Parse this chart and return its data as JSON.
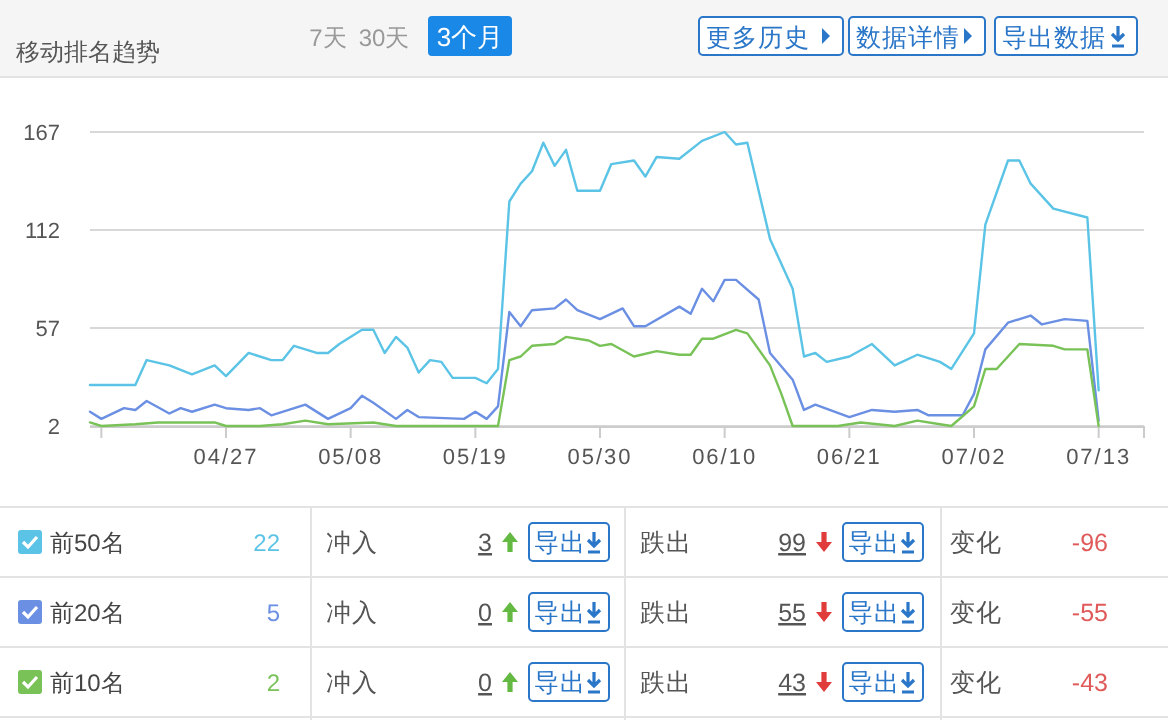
{
  "chart_data": [
    {
      "type": "line",
      "title": "移动排名趋势",
      "xlim": [
        "--04-15",
        "--07-17"
      ],
      "ylim": [
        2,
        167
      ],
      "yticks": [
        2,
        57,
        112,
        167
      ],
      "xticks": [
        {
          "value": "--04-16",
          "label": null
        },
        {
          "value": "--04-27",
          "label": "04/27"
        },
        {
          "value": "--05-08",
          "label": "05/08"
        },
        {
          "value": "--05-19",
          "label": "05/19"
        },
        {
          "value": "--05-30",
          "label": "05/30"
        },
        {
          "value": "--06-10",
          "label": "06/10"
        },
        {
          "value": "--06-21",
          "label": "06/21"
        },
        {
          "value": "--07-02",
          "label": "07/02"
        },
        {
          "value": "--07-13",
          "label": "07/13"
        }
      ],
      "grid": "y",
      "legend": "bottom",
      "series": [
        {
          "name": "前50名",
          "color": "#5bc4e6",
          "x": [
            "--04-15",
            "--04-19",
            "--04-20",
            "--04-22",
            "--04-24",
            "--04-26",
            "--04-27",
            "--04-29",
            "--05-01",
            "--05-02",
            "--05-03",
            "--05-05",
            "--05-06",
            "--05-07",
            "--05-09",
            "--05-10",
            "--05-11",
            "--05-12",
            "--05-13",
            "--05-14",
            "--05-15",
            "--05-16",
            "--05-17",
            "--05-19",
            "--05-20",
            "--05-21",
            "--05-22",
            "--05-23",
            "--05-24",
            "--05-25",
            "--05-26",
            "--05-27",
            "--05-28",
            "--05-30",
            "--05-31",
            "--06-02",
            "--06-03",
            "--06-04",
            "--06-06",
            "--06-08",
            "--06-10",
            "--06-11",
            "--06-12",
            "--06-14",
            "--06-16",
            "--06-17",
            "--06-18",
            "--06-19",
            "--06-21",
            "--06-23",
            "--06-25",
            "--06-27",
            "--06-29",
            "--06-30",
            "--07-02",
            "--07-03",
            "--07-05",
            "--07-06",
            "--07-07",
            "--07-09",
            "--07-12",
            "--07-13"
          ],
          "values": [
            25,
            25,
            39,
            36,
            31,
            36,
            30,
            43,
            39,
            39,
            47,
            43,
            43,
            48,
            56,
            56,
            43,
            52,
            46,
            32,
            39,
            38,
            29,
            29,
            26,
            34,
            128,
            138,
            145,
            161,
            148,
            157,
            134,
            134,
            149,
            151,
            142,
            153,
            152,
            162,
            167,
            160,
            161,
            107,
            79,
            41,
            43,
            38,
            41,
            48,
            36,
            42,
            38,
            34,
            54,
            115,
            151,
            151,
            138,
            124,
            119,
            22
          ]
        },
        {
          "name": "前20名",
          "color": "#6b8fe3",
          "x": [
            "--04-15",
            "--04-16",
            "--04-18",
            "--04-19",
            "--04-20",
            "--04-22",
            "--04-23",
            "--04-24",
            "--04-26",
            "--04-27",
            "--04-29",
            "--04-30",
            "--05-01",
            "--05-04",
            "--05-06",
            "--05-08",
            "--05-09",
            "--05-10",
            "--05-12",
            "--05-13",
            "--05-14",
            "--05-18",
            "--05-19",
            "--05-20",
            "--05-21",
            "--05-22",
            "--05-23",
            "--05-24",
            "--05-26",
            "--05-27",
            "--05-28",
            "--05-30",
            "--06-01",
            "--06-02",
            "--06-03",
            "--06-06",
            "--06-07",
            "--06-08",
            "--06-09",
            "--06-10",
            "--06-11",
            "--06-13",
            "--06-14",
            "--06-16",
            "--06-17",
            "--06-18",
            "--06-21",
            "--06-23",
            "--06-25",
            "--06-27",
            "--06-28",
            "--07-01",
            "--07-02",
            "--07-03",
            "--07-05",
            "--07-07",
            "--07-08",
            "--07-10",
            "--07-12",
            "--07-13"
          ],
          "values": [
            10,
            6,
            12,
            11,
            16,
            9,
            12,
            10,
            14,
            12,
            11,
            12,
            8,
            14,
            6,
            12,
            19,
            15,
            6,
            11,
            7,
            6,
            10,
            6,
            13,
            66,
            58,
            67,
            68,
            73,
            67,
            62,
            68,
            58,
            58,
            69,
            65,
            79,
            72,
            84,
            84,
            73,
            43,
            28,
            11,
            14,
            7,
            11,
            10,
            11,
            8,
            8,
            20,
            45,
            60,
            64,
            59,
            62,
            61,
            5
          ]
        },
        {
          "name": "前10名",
          "color": "#78c257",
          "x": [
            "--04-15",
            "--04-16",
            "--04-19",
            "--04-21",
            "--04-23",
            "--04-26",
            "--04-27",
            "--04-30",
            "--05-02",
            "--05-04",
            "--05-06",
            "--05-10",
            "--05-12",
            "--05-21",
            "--05-22",
            "--05-23",
            "--05-24",
            "--05-26",
            "--05-27",
            "--05-29",
            "--05-30",
            "--05-31",
            "--06-02",
            "--06-04",
            "--06-06",
            "--06-07",
            "--06-08",
            "--06-09",
            "--06-11",
            "--06-12",
            "--06-14",
            "--06-15",
            "--06-16",
            "--06-20",
            "--06-22",
            "--06-25",
            "--06-27",
            "--06-29",
            "--06-30",
            "--07-02",
            "--07-03",
            "--07-04",
            "--07-06",
            "--07-09",
            "--07-10",
            "--07-12",
            "--07-13"
          ],
          "values": [
            4,
            2,
            3,
            4,
            4,
            4,
            2,
            2,
            3,
            5,
            3,
            4,
            2,
            2,
            39,
            41,
            47,
            48,
            52,
            50,
            47,
            48,
            41,
            44,
            42,
            42,
            51,
            51,
            56,
            54,
            36,
            20,
            2,
            2,
            4,
            2,
            5,
            3,
            2,
            13,
            34,
            34,
            48,
            47,
            45,
            45,
            2
          ]
        }
      ]
    },
    {
      "type": "other",
      "annotations": [
        "7天",
        "30天",
        "3个月",
        "更多历史",
        "数据详情",
        "导出数据",
        "22",
        "冲入",
        "3",
        "导出",
        "跌出",
        "99",
        "导出",
        "变化",
        "-96",
        "5",
        "冲入",
        "0",
        "导出",
        "跌出",
        "55",
        "导出",
        "变化",
        "-55",
        "2",
        "冲入",
        "0",
        "导出",
        "跌出",
        "43",
        "导出",
        "变化",
        "-43"
      ]
    }
  ]
}
